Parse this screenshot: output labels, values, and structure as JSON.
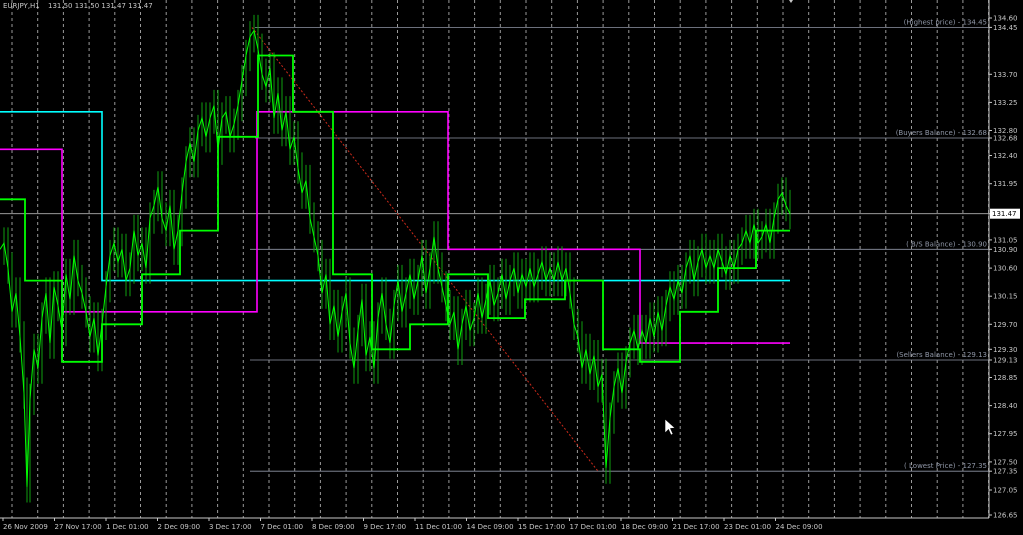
{
  "header": {
    "symbol": "EURJPY,H1",
    "quote": "131.50 131.50 131.47 131.47"
  },
  "chart_data": {
    "type": "line",
    "ylim": [
      126.65,
      134.6
    ],
    "price_ticks": [
      "134.60",
      "134.45",
      "133.70",
      "133.25",
      "132.80",
      "132.68",
      "132.40",
      "131.95",
      "131.47",
      "131.05",
      "130.90",
      "130.60",
      "130.15",
      "129.70",
      "129.30",
      "129.13",
      "128.85",
      "128.40",
      "127.95",
      "127.50",
      "127.35",
      "127.05",
      "126.65"
    ],
    "current_price": "131.47",
    "time_labels": [
      "26 Nov 2009",
      "27 Nov 17:00",
      "1 Dec 01:00",
      "2 Dec 09:00",
      "3 Dec 17:00",
      "7 Dec 01:00",
      "8 Dec 09:00",
      "9 Dec 17:00",
      "11 Dec 01:00",
      "14 Dec 09:00",
      "15 Dec 17:00",
      "17 Dec 01:00",
      "18 Dec 09:00",
      "21 Dec 17:00",
      "23 Dec 01:00",
      "24 Dec 09:00"
    ],
    "levels": [
      {
        "label": "(Highest price)  -  134.45",
        "value": 134.45
      },
      {
        "label": "(Buyers Balance)  -  132.68",
        "value": 132.68
      },
      {
        "label": "( B/S Balance)  -  130.90",
        "value": 130.9
      },
      {
        "label": "(Sellers Balance)  -  129.13",
        "value": 129.13
      },
      {
        "label": "( Lowest Price)  -  127.35",
        "value": 127.35
      }
    ],
    "price_series": [
      [
        0,
        130.9
      ],
      [
        4,
        131.0
      ],
      [
        8,
        130.6
      ],
      [
        12,
        129.9
      ],
      [
        16,
        130.2
      ],
      [
        20,
        129.5
      ],
      [
        24,
        128.6
      ],
      [
        27,
        127.1
      ],
      [
        30,
        128.5
      ],
      [
        34,
        129.3
      ],
      [
        38,
        129.0
      ],
      [
        42,
        129.8
      ],
      [
        46,
        130.2
      ],
      [
        50,
        129.4
      ],
      [
        54,
        130.3
      ],
      [
        58,
        130.0
      ],
      [
        62,
        129.6
      ],
      [
        66,
        130.5
      ],
      [
        70,
        130.1
      ],
      [
        74,
        130.8
      ],
      [
        78,
        130.4
      ],
      [
        82,
        130.2
      ],
      [
        86,
        129.9
      ],
      [
        90,
        129.5
      ],
      [
        94,
        129.8
      ],
      [
        98,
        129.2
      ],
      [
        102,
        129.7
      ],
      [
        106,
        130.3
      ],
      [
        110,
        130.8
      ],
      [
        114,
        131.0
      ],
      [
        118,
        130.7
      ],
      [
        122,
        130.9
      ],
      [
        126,
        130.4
      ],
      [
        130,
        130.6
      ],
      [
        134,
        131.2
      ],
      [
        138,
        130.8
      ],
      [
        142,
        131.0
      ],
      [
        146,
        130.6
      ],
      [
        150,
        131.4
      ],
      [
        154,
        131.6
      ],
      [
        158,
        131.9
      ],
      [
        162,
        131.4
      ],
      [
        166,
        131.2
      ],
      [
        170,
        131.6
      ],
      [
        174,
        130.9
      ],
      [
        178,
        131.2
      ],
      [
        182,
        131.8
      ],
      [
        186,
        132.3
      ],
      [
        190,
        132.6
      ],
      [
        194,
        132.3
      ],
      [
        198,
        132.8
      ],
      [
        202,
        133.0
      ],
      [
        206,
        132.7
      ],
      [
        210,
        133.0
      ],
      [
        214,
        133.2
      ],
      [
        218,
        132.5
      ],
      [
        222,
        133.0
      ],
      [
        226,
        133.1
      ],
      [
        230,
        132.7
      ],
      [
        234,
        132.9
      ],
      [
        238,
        133.2
      ],
      [
        242,
        133.6
      ],
      [
        246,
        134.0
      ],
      [
        250,
        134.3
      ],
      [
        254,
        134.4
      ],
      [
        258,
        134.1
      ],
      [
        262,
        133.7
      ],
      [
        266,
        133.5
      ],
      [
        270,
        133.8
      ],
      [
        274,
        133.0
      ],
      [
        278,
        133.4
      ],
      [
        282,
        132.8
      ],
      [
        286,
        133.1
      ],
      [
        290,
        132.5
      ],
      [
        294,
        132.7
      ],
      [
        298,
        132.2
      ],
      [
        302,
        131.8
      ],
      [
        306,
        132.0
      ],
      [
        310,
        131.4
      ],
      [
        314,
        131.1
      ],
      [
        318,
        130.8
      ],
      [
        322,
        130.2
      ],
      [
        326,
        130.5
      ],
      [
        330,
        129.7
      ],
      [
        334,
        130.0
      ],
      [
        338,
        129.5
      ],
      [
        342,
        129.9
      ],
      [
        346,
        130.2
      ],
      [
        350,
        129.4
      ],
      [
        354,
        129.0
      ],
      [
        358,
        129.6
      ],
      [
        362,
        130.1
      ],
      [
        366,
        129.2
      ],
      [
        370,
        129.5
      ],
      [
        374,
        129.0
      ],
      [
        378,
        129.8
      ],
      [
        382,
        130.2
      ],
      [
        386,
        129.7
      ],
      [
        390,
        129.4
      ],
      [
        394,
        130.0
      ],
      [
        398,
        130.4
      ],
      [
        402,
        129.9
      ],
      [
        406,
        130.2
      ],
      [
        410,
        130.5
      ],
      [
        414,
        130.1
      ],
      [
        418,
        130.4
      ],
      [
        422,
        130.8
      ],
      [
        426,
        130.2
      ],
      [
        430,
        130.6
      ],
      [
        434,
        131.1
      ],
      [
        438,
        130.6
      ],
      [
        442,
        130.3
      ],
      [
        446,
        130.0
      ],
      [
        450,
        129.7
      ],
      [
        454,
        129.9
      ],
      [
        458,
        129.3
      ],
      [
        462,
        129.7
      ],
      [
        466,
        130.0
      ],
      [
        470,
        129.6
      ],
      [
        474,
        129.8
      ],
      [
        478,
        130.2
      ],
      [
        482,
        129.8
      ],
      [
        486,
        130.1
      ],
      [
        490,
        130.4
      ],
      [
        494,
        130.0
      ],
      [
        498,
        130.2
      ],
      [
        502,
        130.5
      ],
      [
        506,
        130.1
      ],
      [
        510,
        130.4
      ],
      [
        514,
        130.6
      ],
      [
        518,
        130.2
      ],
      [
        522,
        130.5
      ],
      [
        526,
        130.3
      ],
      [
        530,
        130.6
      ],
      [
        534,
        130.3
      ],
      [
        538,
        130.5
      ],
      [
        542,
        130.7
      ],
      [
        546,
        130.4
      ],
      [
        550,
        130.6
      ],
      [
        554,
        130.4
      ],
      [
        558,
        130.7
      ],
      [
        562,
        130.4
      ],
      [
        566,
        130.6
      ],
      [
        570,
        130.2
      ],
      [
        574,
        129.7
      ],
      [
        578,
        129.5
      ],
      [
        582,
        129.0
      ],
      [
        586,
        129.3
      ],
      [
        590,
        128.9
      ],
      [
        594,
        129.2
      ],
      [
        598,
        128.7
      ],
      [
        602,
        128.9
      ],
      [
        606,
        127.4
      ],
      [
        610,
        128.2
      ],
      [
        614,
        128.7
      ],
      [
        618,
        129.0
      ],
      [
        622,
        128.6
      ],
      [
        626,
        129.1
      ],
      [
        630,
        129.4
      ],
      [
        634,
        129.6
      ],
      [
        638,
        129.3
      ],
      [
        642,
        129.6
      ],
      [
        646,
        129.4
      ],
      [
        650,
        129.8
      ],
      [
        654,
        129.5
      ],
      [
        658,
        129.9
      ],
      [
        662,
        129.6
      ],
      [
        666,
        130.0
      ],
      [
        670,
        130.3
      ],
      [
        674,
        130.1
      ],
      [
        678,
        130.4
      ],
      [
        682,
        130.2
      ],
      [
        686,
        130.6
      ],
      [
        690,
        130.8
      ],
      [
        694,
        130.4
      ],
      [
        698,
        130.7
      ],
      [
        702,
        130.9
      ],
      [
        706,
        130.6
      ],
      [
        710,
        130.8
      ],
      [
        714,
        130.6
      ],
      [
        718,
        130.9
      ],
      [
        722,
        130.7
      ],
      [
        726,
        130.5
      ],
      [
        730,
        130.8
      ],
      [
        734,
        130.6
      ],
      [
        738,
        130.9
      ],
      [
        742,
        131.0
      ],
      [
        746,
        131.2
      ],
      [
        750,
        131.0
      ],
      [
        754,
        131.3
      ],
      [
        758,
        131.0
      ],
      [
        762,
        131.1
      ],
      [
        766,
        131.3
      ],
      [
        770,
        131.0
      ],
      [
        774,
        131.4
      ],
      [
        778,
        131.7
      ],
      [
        782,
        131.8
      ],
      [
        786,
        131.6
      ],
      [
        790,
        131.47
      ]
    ],
    "green_steps": [
      [
        0,
        131.7
      ],
      [
        25,
        131.7
      ],
      [
        25,
        130.4
      ],
      [
        62,
        130.4
      ],
      [
        62,
        129.1
      ],
      [
        102,
        129.1
      ],
      [
        102,
        129.7
      ],
      [
        142,
        129.7
      ],
      [
        142,
        130.5
      ],
      [
        180,
        130.5
      ],
      [
        180,
        131.2
      ],
      [
        218,
        131.2
      ],
      [
        218,
        132.7
      ],
      [
        258,
        132.7
      ],
      [
        258,
        134.0
      ],
      [
        293,
        134.0
      ],
      [
        293,
        133.1
      ],
      [
        333,
        133.1
      ],
      [
        333,
        130.5
      ],
      [
        372,
        130.5
      ],
      [
        372,
        129.3
      ],
      [
        410,
        129.3
      ],
      [
        410,
        129.7
      ],
      [
        448,
        129.7
      ],
      [
        448,
        130.5
      ],
      [
        488,
        130.5
      ],
      [
        488,
        129.8
      ],
      [
        525,
        129.8
      ],
      [
        525,
        130.1
      ],
      [
        565,
        130.1
      ],
      [
        565,
        130.4
      ],
      [
        603,
        130.4
      ],
      [
        603,
        129.3
      ],
      [
        640,
        129.3
      ],
      [
        640,
        129.1
      ],
      [
        680,
        129.1
      ],
      [
        680,
        129.9
      ],
      [
        718,
        129.9
      ],
      [
        718,
        130.6
      ],
      [
        756,
        130.6
      ],
      [
        756,
        131.2
      ],
      [
        790,
        131.2
      ]
    ],
    "magenta_steps": [
      [
        0,
        132.5
      ],
      [
        62,
        132.5
      ],
      [
        62,
        129.9
      ],
      [
        257,
        129.9
      ],
      [
        257,
        133.1
      ],
      [
        448,
        133.1
      ],
      [
        448,
        130.9
      ],
      [
        640,
        130.9
      ],
      [
        640,
        129.4
      ],
      [
        790,
        129.4
      ]
    ],
    "cyan_steps": [
      [
        0,
        133.1
      ],
      [
        102,
        133.1
      ],
      [
        102,
        130.4
      ],
      [
        790,
        130.4
      ]
    ],
    "trend_line": [
      [
        252,
        134.45
      ],
      [
        598,
        127.35
      ]
    ],
    "colors": {
      "price": "#00ff00",
      "magenta": "#ff00ff",
      "cyan": "#00ffff",
      "trend": "#cc2a1a",
      "grid": "#9a9a9a",
      "level": "#8f96a6"
    }
  }
}
